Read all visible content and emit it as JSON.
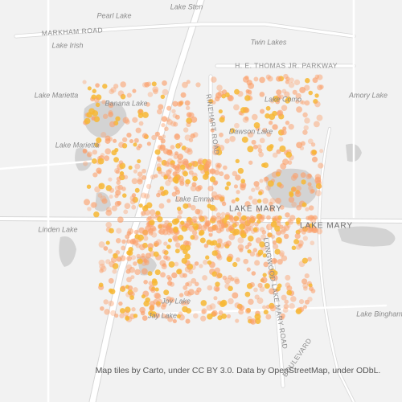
{
  "labels": {
    "pearl_lake": "Pearl Lake",
    "lake_sten": "Lake Sten",
    "markham_road": "MARKHAM ROAD",
    "lake_irish": "Lake Irish",
    "twin_lakes": "Twin Lakes",
    "parkway": "H. E. THOMAS JR. PARKWAY",
    "lake_marietta_1": "Lake Marietta",
    "banana_lake": "Banana Lake",
    "lake_como": "Lake Como",
    "amory_lake": "Amory Lake",
    "dawson_lake": "Dawson Lake",
    "lake_marietta_2": "Lake Marietta",
    "rinehart_road": "RINEHART ROAD",
    "lake_emma": "Lake Emma",
    "lake_mary_1": "LAKE MARY",
    "lake_mary_2": "LAKE MARY",
    "linden_lake": "Linden Lake",
    "longwood_road": "LONGWOOD LAKE MARY ROAD",
    "joy_lake": "Joy Lake",
    "jay_lake": "Jay Lake",
    "lake_bingham": "Lake Bingham",
    "boulevard": "BOULEVARD"
  },
  "attribution": "Map tiles by Carto, under CC BY 3.0. Data by OpenStreetMap, under ODbL."
}
